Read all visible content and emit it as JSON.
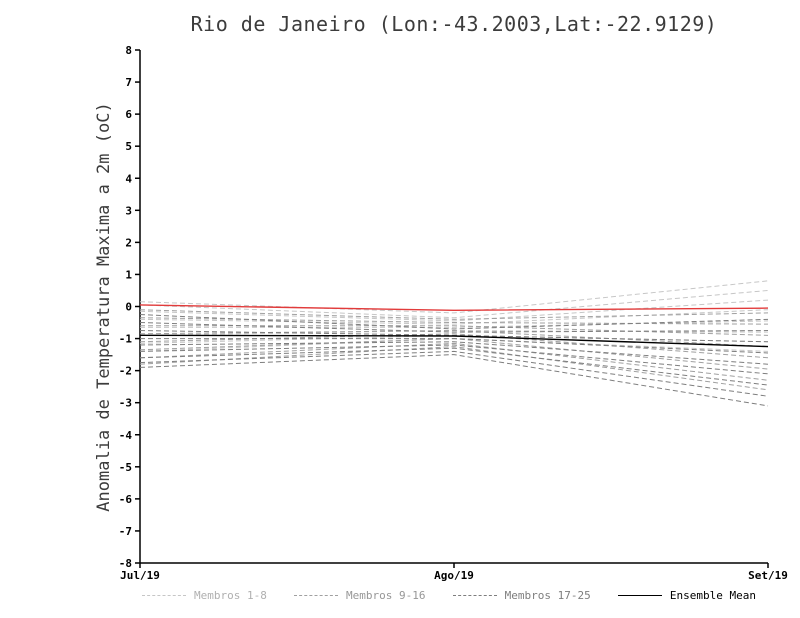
{
  "chart_data": {
    "type": "line",
    "title": "Rio de Janeiro (Lon:-43.2003,Lat:-22.9129)",
    "xlabel": "",
    "ylabel": "Anomalia de Temperatura Maxima a 2m (oC)",
    "x_tick_labels": [
      "Jul/19",
      "Ago/19",
      "Set/19"
    ],
    "y_ticks": [
      8,
      7,
      6,
      5,
      4,
      3,
      2,
      1,
      0,
      -1,
      -2,
      -3,
      -4,
      -5,
      -6,
      -7,
      -8
    ],
    "ylim": [
      -8,
      8
    ],
    "grid": false,
    "legend_position": "bottom",
    "axis_color": "#000000",
    "legend": [
      {
        "label": "Membros 1-8",
        "color": "#c6c6c6",
        "label_color": "#b0b0b0",
        "dash": true
      },
      {
        "label": "Membros 9-16",
        "color": "#a0a0a0",
        "label_color": "#979797",
        "dash": true
      },
      {
        "label": "Membros 17-25",
        "color": "#7e7e7e",
        "label_color": "#7e7e7e",
        "dash": true
      },
      {
        "label": "Ensemble Mean",
        "color": "#000000",
        "label_color": "#000000",
        "dash": false
      }
    ],
    "series": [
      {
        "name": "Membro 1",
        "group": "Membros 1-8",
        "color": "#c6c6c6",
        "dash": true,
        "width": 1,
        "values": [
          0.15,
          -0.2,
          0.8
        ]
      },
      {
        "name": "Membro 2",
        "group": "Membros 1-8",
        "color": "#c6c6c6",
        "dash": true,
        "width": 1,
        "values": [
          0.05,
          -0.35,
          0.5
        ]
      },
      {
        "name": "Membro 3",
        "group": "Membros 1-8",
        "color": "#c6c6c6",
        "dash": true,
        "width": 1,
        "values": [
          -0.15,
          -0.45,
          0.2
        ]
      },
      {
        "name": "Membro 4",
        "group": "Membros 1-8",
        "color": "#c6c6c6",
        "dash": true,
        "width": 1,
        "values": [
          -0.4,
          -0.55,
          -0.1
        ]
      },
      {
        "name": "Membro 5",
        "group": "Membros 1-8",
        "color": "#c6c6c6",
        "dash": true,
        "width": 1,
        "values": [
          -0.65,
          -0.65,
          -0.45
        ]
      },
      {
        "name": "Membro 6",
        "group": "Membros 1-8",
        "color": "#c6c6c6",
        "dash": true,
        "width": 1,
        "values": [
          -0.9,
          -0.75,
          -0.8
        ]
      },
      {
        "name": "Membro 7",
        "group": "Membros 1-8",
        "color": "#c6c6c6",
        "dash": true,
        "width": 1,
        "values": [
          -1.15,
          -0.9,
          -1.1
        ]
      },
      {
        "name": "Membro 8",
        "group": "Membros 1-8",
        "color": "#c6c6c6",
        "dash": true,
        "width": 1,
        "values": [
          -1.4,
          -1.0,
          -1.4
        ]
      },
      {
        "name": "Membro 9",
        "group": "Membros 9-16",
        "color": "#a0a0a0",
        "dash": true,
        "width": 1,
        "values": [
          -0.1,
          -0.4,
          -0.2
        ]
      },
      {
        "name": "Membro 10",
        "group": "Membros 9-16",
        "color": "#a0a0a0",
        "dash": true,
        "width": 1,
        "values": [
          -0.35,
          -0.5,
          -0.55
        ]
      },
      {
        "name": "Membro 11",
        "group": "Membros 9-16",
        "color": "#a0a0a0",
        "dash": true,
        "width": 1,
        "values": [
          -0.6,
          -0.6,
          -0.9
        ]
      },
      {
        "name": "Membro 12",
        "group": "Membros 9-16",
        "color": "#a0a0a0",
        "dash": true,
        "width": 1,
        "values": [
          -0.85,
          -0.75,
          -1.25
        ]
      },
      {
        "name": "Membro 13",
        "group": "Membros 9-16",
        "color": "#a0a0a0",
        "dash": true,
        "width": 1,
        "values": [
          -1.1,
          -0.85,
          -1.6
        ]
      },
      {
        "name": "Membro 14",
        "group": "Membros 9-16",
        "color": "#a0a0a0",
        "dash": true,
        "width": 1,
        "values": [
          -1.35,
          -1.0,
          -1.95
        ]
      },
      {
        "name": "Membro 15",
        "group": "Membros 9-16",
        "color": "#a0a0a0",
        "dash": true,
        "width": 1,
        "values": [
          -1.6,
          -1.15,
          -2.3
        ]
      },
      {
        "name": "Membro 16",
        "group": "Membros 9-16",
        "color": "#a0a0a0",
        "dash": true,
        "width": 1,
        "values": [
          -1.8,
          -1.25,
          -2.6
        ]
      },
      {
        "name": "Membro 17",
        "group": "Membros 17-25",
        "color": "#7e7e7e",
        "dash": true,
        "width": 1,
        "values": [
          -0.25,
          -0.7,
          -0.4
        ]
      },
      {
        "name": "Membro 18",
        "group": "Membros 17-25",
        "color": "#7e7e7e",
        "dash": true,
        "width": 1,
        "values": [
          -0.5,
          -0.8,
          -0.75
        ]
      },
      {
        "name": "Membro 19",
        "group": "Membros 17-25",
        "color": "#7e7e7e",
        "dash": true,
        "width": 1,
        "values": [
          -0.75,
          -0.9,
          -1.1
        ]
      },
      {
        "name": "Membro 20",
        "group": "Membros 17-25",
        "color": "#7e7e7e",
        "dash": true,
        "width": 1,
        "values": [
          -1.0,
          -1.0,
          -1.45
        ]
      },
      {
        "name": "Membro 21",
        "group": "Membros 17-25",
        "color": "#7e7e7e",
        "dash": true,
        "width": 1,
        "values": [
          -1.2,
          -1.1,
          -1.8
        ]
      },
      {
        "name": "Membro 22",
        "group": "Membros 17-25",
        "color": "#7e7e7e",
        "dash": true,
        "width": 1,
        "values": [
          -1.4,
          -1.2,
          -2.1
        ]
      },
      {
        "name": "Membro 23",
        "group": "Membros 17-25",
        "color": "#7e7e7e",
        "dash": true,
        "width": 1,
        "values": [
          -1.6,
          -1.3,
          -2.45
        ]
      },
      {
        "name": "Membro 24",
        "group": "Membros 17-25",
        "color": "#7e7e7e",
        "dash": true,
        "width": 1,
        "values": [
          -1.75,
          -1.4,
          -2.8
        ]
      },
      {
        "name": "Membro 25",
        "group": "Membros 17-25",
        "color": "#7e7e7e",
        "dash": true,
        "width": 1,
        "values": [
          -1.9,
          -1.5,
          -3.1
        ]
      },
      {
        "name": "Ensemble Mean",
        "group": "mean",
        "color": "#000000",
        "dash": false,
        "width": 1.4,
        "values": [
          -0.9,
          -0.92,
          -1.25
        ]
      },
      {
        "name": "",
        "group": "red-line",
        "color": "#e23b3b",
        "dash": false,
        "width": 1.4,
        "values": [
          0.05,
          -0.12,
          -0.05
        ]
      }
    ]
  }
}
